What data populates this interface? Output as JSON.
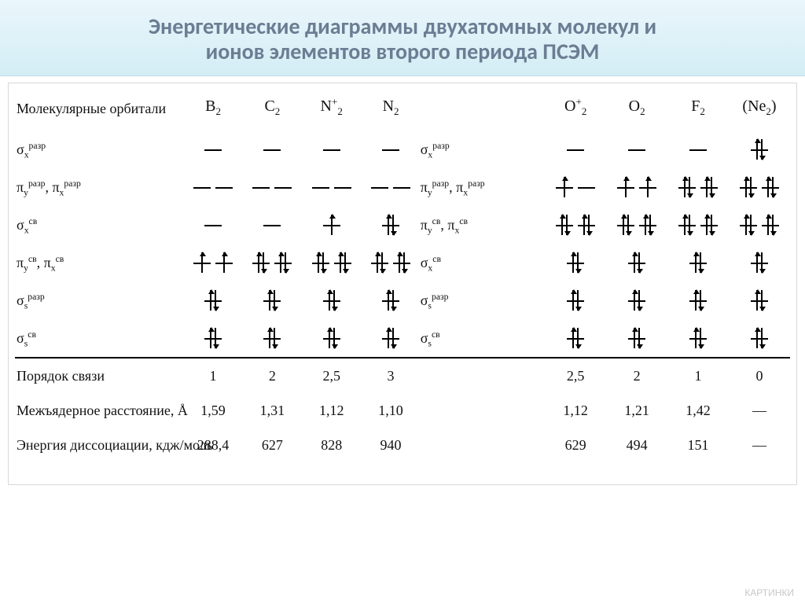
{
  "title_line1": "Энергетические диаграммы двухатомных молекул и",
  "title_line2": "ионов элементов второго периода ПСЭМ",
  "header_left": "Молекулярные орбитали",
  "molecules_left": [
    {
      "symbol": "B",
      "sub": "2",
      "sup": ""
    },
    {
      "symbol": "C",
      "sub": "2",
      "sup": ""
    },
    {
      "symbol": "N",
      "sub": "2",
      "sup": "+"
    },
    {
      "symbol": "N",
      "sub": "2",
      "sup": ""
    }
  ],
  "molecules_right": [
    {
      "symbol": "O",
      "sub": "2",
      "sup": "+"
    },
    {
      "symbol": "O",
      "sub": "2",
      "sup": ""
    },
    {
      "symbol": "F",
      "sub": "2",
      "sup": ""
    },
    {
      "symbol": "(Ne",
      "sub": "2",
      "sup": "",
      "close": ")"
    }
  ],
  "orbital_row_labels_left": [
    "σ<sub>x</sub><sup>разр</sup>",
    "π<sub>y</sub><sup>разр</sup>, π<sub>x</sub><sup>разр</sup>",
    "σ<sub>x</sub><sup>св</sup>",
    "π<sub>y</sub><sup>св</sup>, π<sub>x</sub><sup>св</sup>",
    "σ<sub>s</sub><sup>разр</sup>",
    "σ<sub>s</sub><sup>св</sup>"
  ],
  "orbital_row_labels_mid": [
    "σ<sub>x</sub><sup>разр</sup>",
    "π<sub>y</sub><sup>разр</sup>, π<sub>x</sub><sup>разр</sup>",
    "π<sub>y</sub><sup>св</sup>, π<sub>x</sub><sup>св</sup>",
    "σ<sub>x</sub><sup>св</sup>",
    "σ<sub>s</sub><sup>разр</sup>",
    "σ<sub>s</sub><sup>св</sup>"
  ],
  "occ_left": [
    [
      [
        "e"
      ],
      [
        "e"
      ],
      [
        "e"
      ],
      [
        "e"
      ]
    ],
    [
      [
        "e",
        "e"
      ],
      [
        "e",
        "e"
      ],
      [
        "e",
        "e"
      ],
      [
        "e",
        "e"
      ]
    ],
    [
      [
        "e"
      ],
      [
        "e"
      ],
      [
        "u"
      ],
      [
        "p"
      ]
    ],
    [
      [
        "u",
        "u"
      ],
      [
        "p",
        "p"
      ],
      [
        "p",
        "p"
      ],
      [
        "p",
        "p"
      ]
    ],
    [
      [
        "p"
      ],
      [
        "p"
      ],
      [
        "p"
      ],
      [
        "p"
      ]
    ],
    [
      [
        "p"
      ],
      [
        "p"
      ],
      [
        "p"
      ],
      [
        "p"
      ]
    ]
  ],
  "occ_right": [
    [
      [
        "e"
      ],
      [
        "e"
      ],
      [
        "e"
      ],
      [
        "p"
      ]
    ],
    [
      [
        "u",
        "e"
      ],
      [
        "u",
        "u"
      ],
      [
        "p",
        "p"
      ],
      [
        "p",
        "p"
      ]
    ],
    [
      [
        "p",
        "p"
      ],
      [
        "p",
        "p"
      ],
      [
        "p",
        "p"
      ],
      [
        "p",
        "p"
      ]
    ],
    [
      [
        "p"
      ],
      [
        "p"
      ],
      [
        "p"
      ],
      [
        "p"
      ]
    ],
    [
      [
        "p"
      ],
      [
        "p"
      ],
      [
        "p"
      ],
      [
        "p"
      ]
    ],
    [
      [
        "p"
      ],
      [
        "p"
      ],
      [
        "p"
      ],
      [
        "p"
      ]
    ]
  ],
  "footer_rows": [
    {
      "label": "Порядок связи",
      "left": [
        "1",
        "2",
        "2,5",
        "3"
      ],
      "right": [
        "2,5",
        "2",
        "1",
        "0"
      ]
    },
    {
      "label": "Межъядерное расстояние, Å",
      "left": [
        "1,59",
        "1,31",
        "1,12",
        "1,10"
      ],
      "right": [
        "1,12",
        "1,21",
        "1,42",
        "—"
      ]
    },
    {
      "label": "Энергия диссоциации, кдж/моль",
      "left": [
        "288,4",
        "627",
        "828",
        "940"
      ],
      "right": [
        "629",
        "494",
        "151",
        "—"
      ]
    }
  ],
  "style": {
    "title_color": "#6b7d93",
    "title_fontsize": 28,
    "body_fontsize": 18,
    "head_fontsize": 20,
    "line_color": "#000000",
    "plate_border": "#d8d8d8",
    "title_bg_top": "#eaf6fb",
    "title_bg_bot": "#d3edf5"
  },
  "watermark": "КАРТИНКИ"
}
